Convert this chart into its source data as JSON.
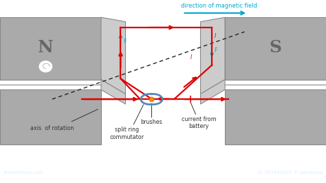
{
  "bg_color": "#ffffff",
  "magnet_gray": "#aaaaaa",
  "magnet_dark": "#888888",
  "magnet_light": "#cccccc",
  "N_label": "N",
  "S_label": "S",
  "red": "#dd0000",
  "blue": "#00aacc",
  "orange": "#ff8800",
  "label_color": "#333333",
  "bottom_bar_color": "#2299cc",
  "bottom_text_color": "#ddeeff",
  "watermark_text": "dreamstime.com",
  "id_text": "ID 257460095 © Jaksamya",
  "dir_label": "direction of magnetic field",
  "axis_label": "axis  of rotation",
  "brushes_label": "brushes",
  "current_label": "current from\nbattery",
  "split_label": "split ring\ncommutator",
  "xlim": [
    0,
    10
  ],
  "ylim": [
    0,
    5.6
  ]
}
